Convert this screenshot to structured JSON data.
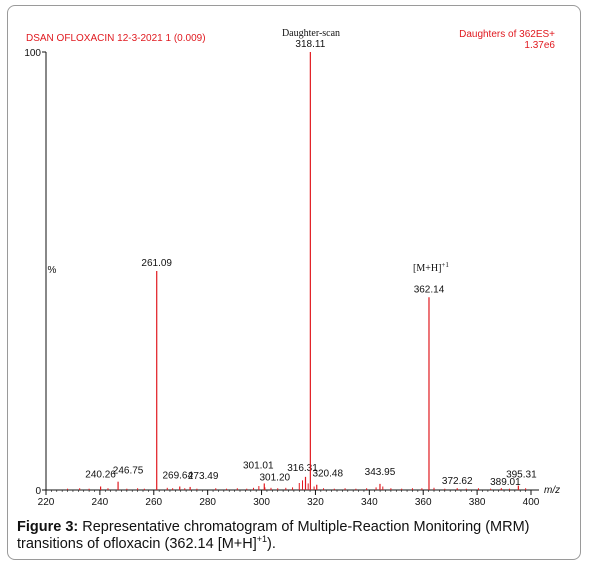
{
  "chart_data": {
    "type": "bar",
    "header_left": "DSAN OFLOXACIN 12-3-2021  1 (0.009)",
    "header_center": "Daughter-scan",
    "header_right_line1": "Daughters of 362ES+",
    "header_right_line2": "1.37e6",
    "ylabel": "%",
    "xlabel": "m/z",
    "xlim": [
      220,
      400
    ],
    "ylim": [
      0,
      100
    ],
    "x_ticks": [
      220,
      240,
      260,
      280,
      300,
      320,
      340,
      360,
      380,
      400
    ],
    "y_ticks": [
      0,
      100
    ],
    "peaks": [
      {
        "x": 240.26,
        "y": 0.8,
        "label": "240.26"
      },
      {
        "x": 246.75,
        "y": 1.9,
        "label": "246.75"
      },
      {
        "x": 261.09,
        "y": 50,
        "label": "261.09"
      },
      {
        "x": 269.64,
        "y": 0.8,
        "label": "269.64"
      },
      {
        "x": 273.49,
        "y": 0.7,
        "label": "273.49"
      },
      {
        "x": 301.01,
        "y": 1.5,
        "label": "301.01"
      },
      {
        "x": 301.2,
        "y": 0.6,
        "label": "301.20"
      },
      {
        "x": 316.31,
        "y": 3.0,
        "label": "316.31"
      },
      {
        "x": 318.11,
        "y": 100,
        "label": "318.11"
      },
      {
        "x": 320.48,
        "y": 1.2,
        "label": "320.48"
      },
      {
        "x": 343.95,
        "y": 1.4,
        "label": "343.95"
      },
      {
        "x": 362.14,
        "y": 44,
        "label": "362.14"
      },
      {
        "x": 372.62,
        "y": 0.4,
        "label": "372.62"
      },
      {
        "x": 389.01,
        "y": 0.4,
        "label": "389.01"
      },
      {
        "x": 395.31,
        "y": 1.0,
        "label": "395.31"
      }
    ],
    "noise": [
      {
        "x": 228.0,
        "y": 0.3
      },
      {
        "x": 232.5,
        "y": 0.4
      },
      {
        "x": 236.0,
        "y": 0.3
      },
      {
        "x": 243.0,
        "y": 0.4
      },
      {
        "x": 250.0,
        "y": 0.3
      },
      {
        "x": 254.0,
        "y": 0.4
      },
      {
        "x": 256.5,
        "y": 0.3
      },
      {
        "x": 265.0,
        "y": 0.5
      },
      {
        "x": 267.0,
        "y": 0.4
      },
      {
        "x": 271.5,
        "y": 0.4
      },
      {
        "x": 276.0,
        "y": 0.3
      },
      {
        "x": 283.0,
        "y": 0.4
      },
      {
        "x": 287.0,
        "y": 0.3
      },
      {
        "x": 291.0,
        "y": 0.4
      },
      {
        "x": 294.5,
        "y": 0.3
      },
      {
        "x": 297.0,
        "y": 0.5
      },
      {
        "x": 299.0,
        "y": 0.9
      },
      {
        "x": 303.5,
        "y": 0.5
      },
      {
        "x": 306.0,
        "y": 0.4
      },
      {
        "x": 309.0,
        "y": 0.5
      },
      {
        "x": 311.5,
        "y": 0.6
      },
      {
        "x": 314.0,
        "y": 1.6
      },
      {
        "x": 315.2,
        "y": 2.2
      },
      {
        "x": 317.3,
        "y": 1.5
      },
      {
        "x": 319.5,
        "y": 0.8
      },
      {
        "x": 323.0,
        "y": 0.4
      },
      {
        "x": 327.0,
        "y": 0.3
      },
      {
        "x": 331.0,
        "y": 0.4
      },
      {
        "x": 335.0,
        "y": 0.3
      },
      {
        "x": 339.0,
        "y": 0.4
      },
      {
        "x": 342.5,
        "y": 0.6
      },
      {
        "x": 345.0,
        "y": 0.8
      },
      {
        "x": 348.0,
        "y": 0.4
      },
      {
        "x": 352.0,
        "y": 0.3
      },
      {
        "x": 356.0,
        "y": 0.4
      },
      {
        "x": 359.5,
        "y": 0.4
      },
      {
        "x": 364.0,
        "y": 0.5
      },
      {
        "x": 368.0,
        "y": 0.3
      },
      {
        "x": 376.0,
        "y": 0.3
      },
      {
        "x": 380.5,
        "y": 0.4
      },
      {
        "x": 385.0,
        "y": 0.3
      },
      {
        "x": 392.0,
        "y": 0.3
      },
      {
        "x": 398.0,
        "y": 0.4
      }
    ],
    "annotation": "[M+H]",
    "annotation_sup": "+1",
    "bar_color": "#e0191f",
    "text_color": "#e0191f"
  },
  "caption": {
    "label": "Figure 3:",
    "text": " Representative chromatogram of Multiple-Reaction Monitoring (MRM) transitions of ofloxacin (362.14 [M+H]",
    "sup": "+1",
    "end": ")."
  }
}
